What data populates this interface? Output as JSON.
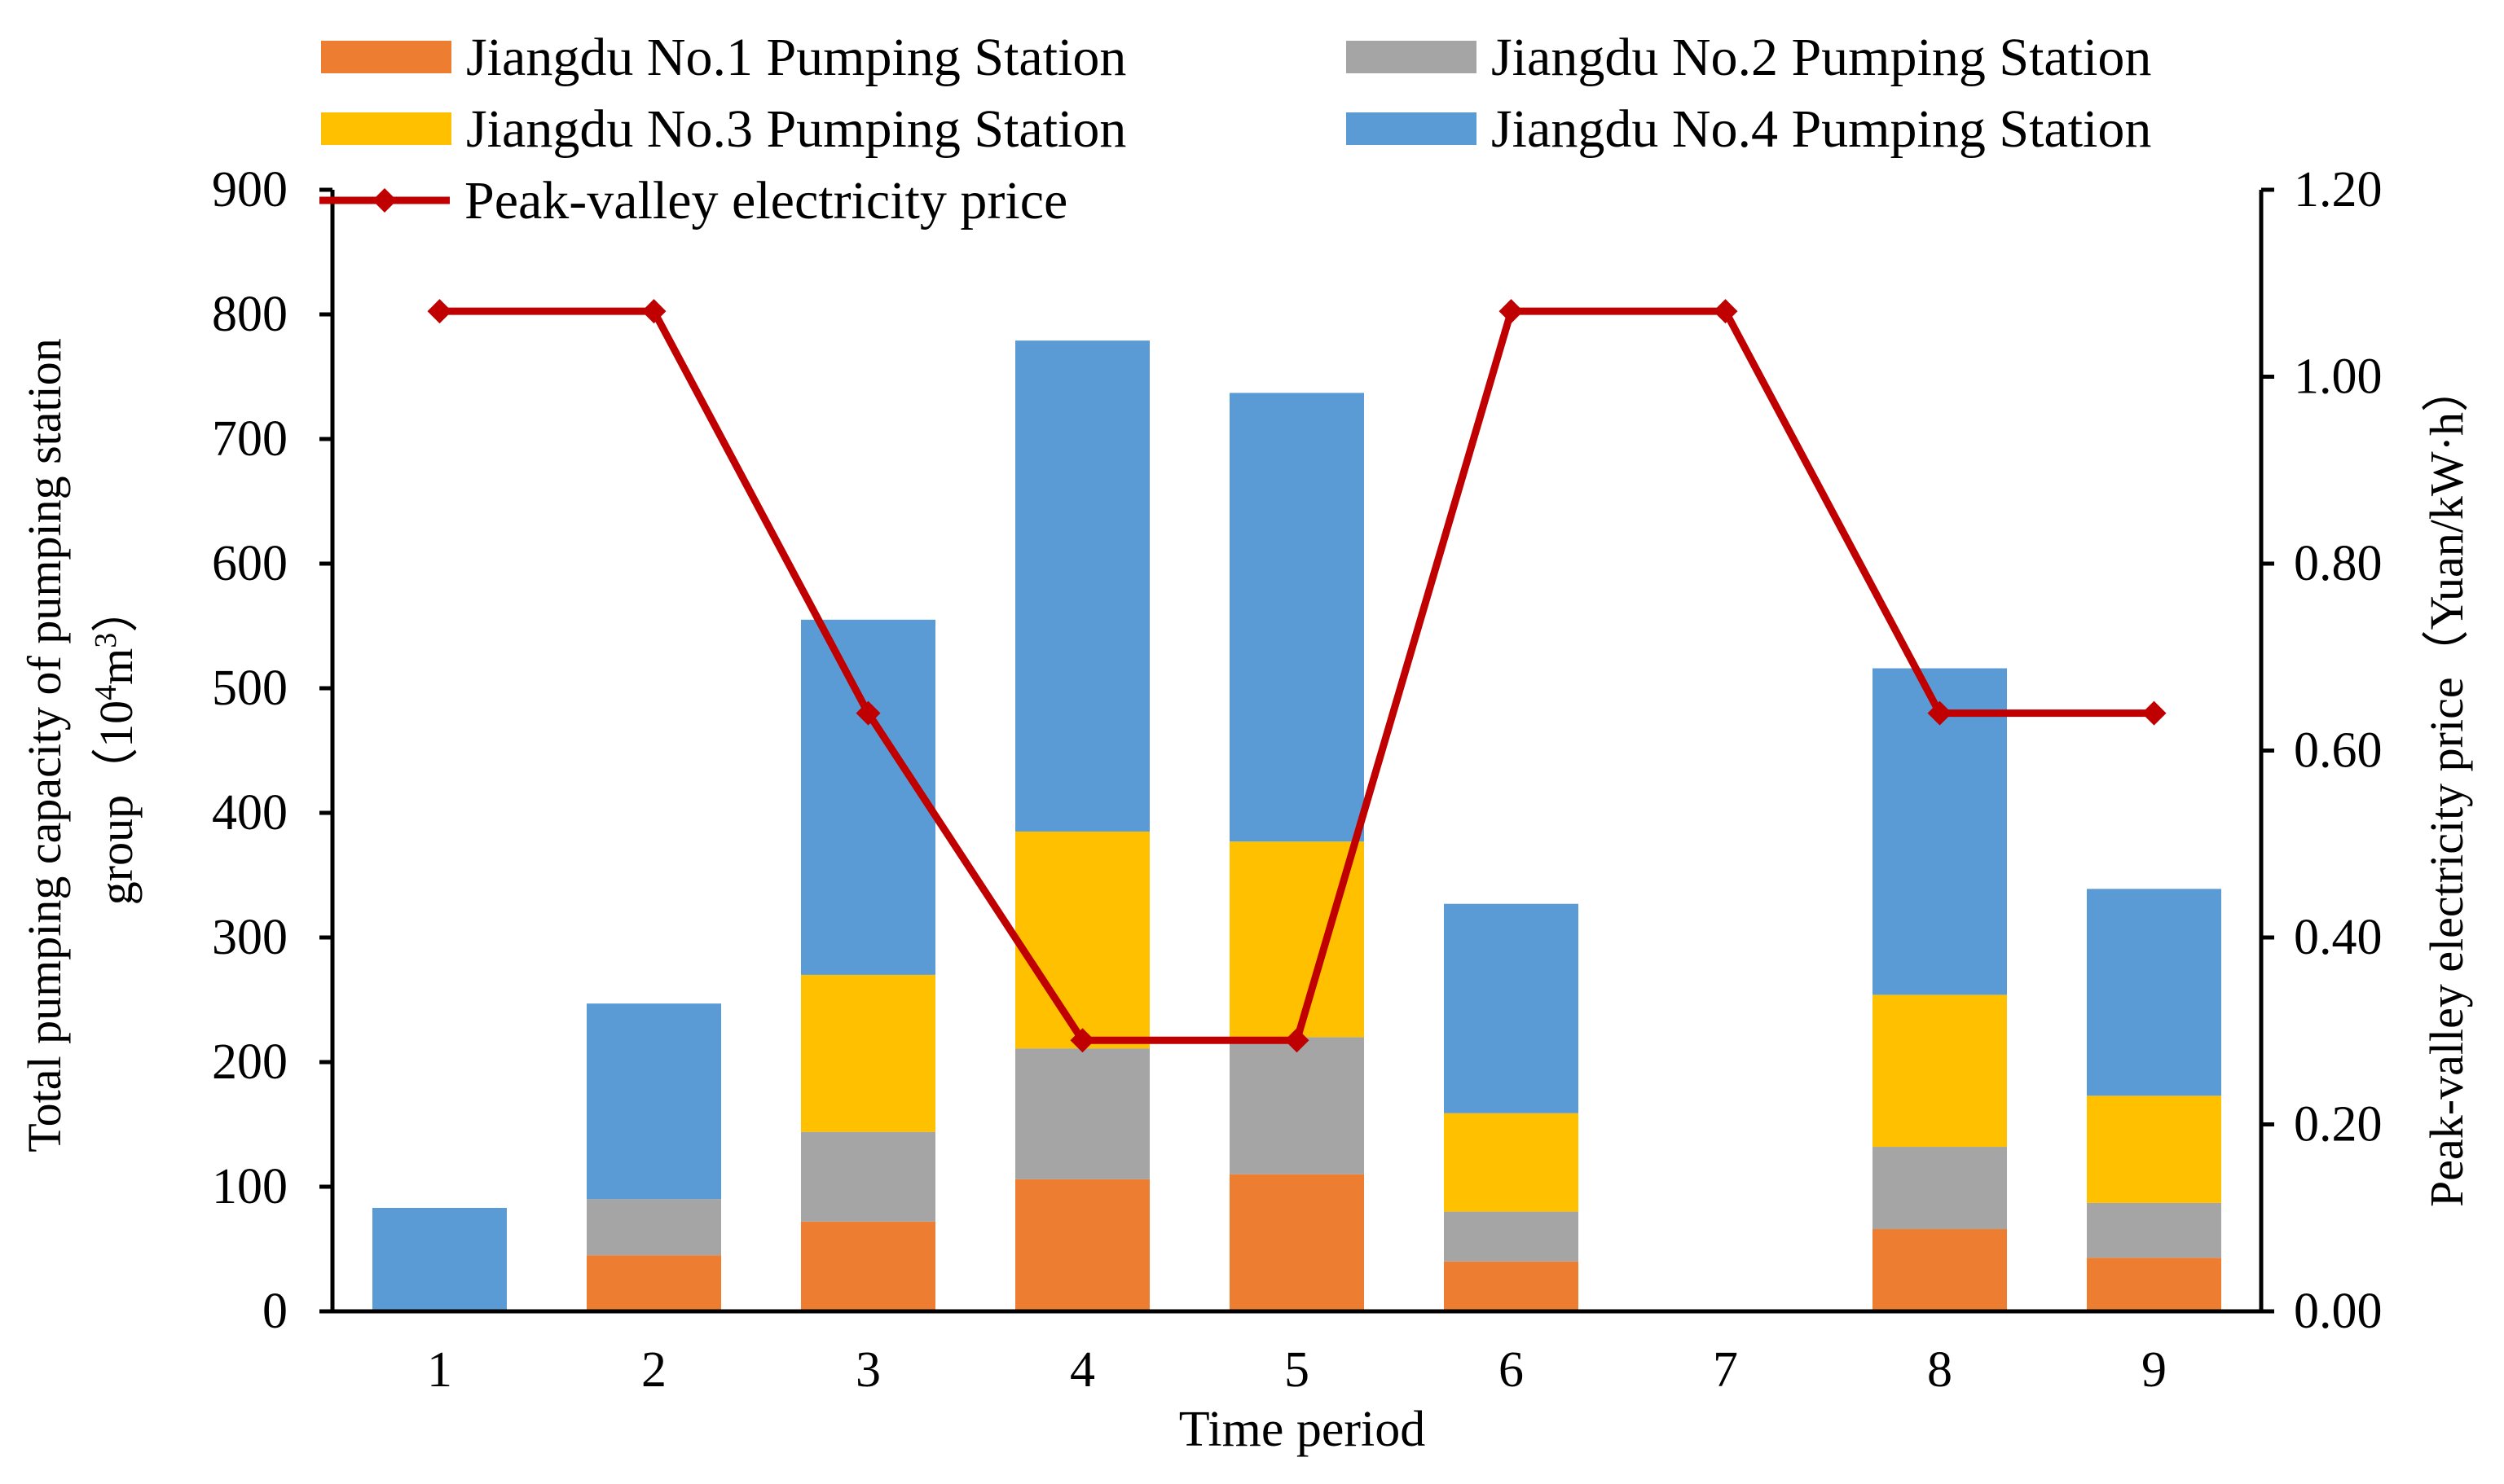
{
  "chart_data": {
    "type": "bar",
    "stacked": true,
    "categories": [
      "1",
      "2",
      "3",
      "4",
      "5",
      "6",
      "7",
      "8",
      "9"
    ],
    "xlabel": "Time period",
    "ylabel_line1": "Total pumping capacity of pumping station",
    "ylabel_line2": "group（",
    "ylabel_unit_base": "10",
    "ylabel_unit_exp": "4",
    "ylabel_unit_m": "m",
    "ylabel_unit_m_exp": "3",
    "ylabel_close": "）",
    "ylabel_right": "Peak-valley electricity price（Yuan/kW·h）",
    "ylim": [
      0,
      900
    ],
    "yticks": [
      "0",
      "100",
      "200",
      "300",
      "400",
      "500",
      "600",
      "700",
      "800",
      "900"
    ],
    "y2lim": [
      0,
      1.2
    ],
    "y2ticks": [
      "0.00",
      "0.20",
      "0.40",
      "0.60",
      "0.80",
      "1.00",
      "1.20"
    ],
    "series": [
      {
        "name": "Jiangdu No.1 Pumping Station",
        "color": "#ED7D31",
        "values": [
          0,
          45,
          72,
          106,
          110,
          40,
          0,
          66,
          43
        ]
      },
      {
        "name": "Jiangdu No.2 Pumping Station",
        "color": "#A5A5A5",
        "values": [
          0,
          45,
          72,
          105,
          110,
          40,
          0,
          66,
          44
        ]
      },
      {
        "name": "Jiangdu No.3 Pumping Station",
        "color": "#FFC000",
        "values": [
          0,
          0,
          126,
          174,
          157,
          79,
          0,
          122,
          86
        ]
      },
      {
        "name": "Jiangdu No.4 Pumping Station",
        "color": "#5B9BD5",
        "values": [
          83,
          157,
          285,
          394,
          360,
          168,
          0,
          262,
          166
        ]
      }
    ],
    "line_series": {
      "name": "Peak-valley electricity price",
      "color": "#C00000",
      "axis": "right",
      "values": [
        1.07,
        1.07,
        0.64,
        0.29,
        0.29,
        1.07,
        1.07,
        0.64,
        0.64
      ]
    },
    "legend": "top"
  }
}
